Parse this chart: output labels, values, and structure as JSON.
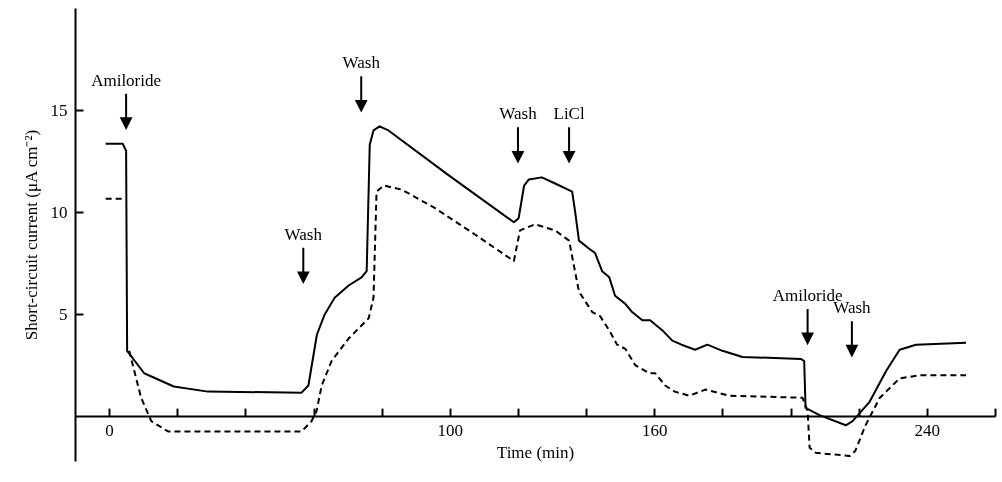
{
  "chart_data": {
    "type": "line",
    "xlabel": "Time (min)",
    "ylabel": "Short-circuit current (μA cm⁻²)",
    "xlim": [
      -10,
      260
    ],
    "ylim": [
      -2.2,
      20
    ],
    "xticks": [
      0,
      {
        "value": 20,
        "label": null
      },
      {
        "value": 40,
        "label": null
      },
      {
        "value": 60,
        "label": null
      },
      {
        "value": 80,
        "label": null
      },
      100,
      {
        "value": 120,
        "label": null
      },
      {
        "value": 140,
        "label": null
      },
      160,
      {
        "value": 180,
        "label": null
      },
      {
        "value": 200,
        "label": null
      },
      {
        "value": 220,
        "label": null
      },
      240,
      {
        "value": 260,
        "label": null
      }
    ],
    "yticks": [
      5,
      10,
      15
    ],
    "grid": false,
    "series": [
      {
        "color": "#000000",
        "line_style": "solid",
        "x": [
          -1,
          4,
          5,
          5.3,
          10.3,
          19,
          29,
          56.5,
          58.5,
          61,
          63.2,
          66.2,
          70.3,
          74.1,
          75.6,
          76.5,
          77.6,
          79.4,
          82,
          99.7,
          118.8,
          120.2,
          121.8,
          123.2,
          127,
          130.9,
          135.9,
          136.8,
          137.9,
          140.9,
          142.6,
          144.7,
          146.8,
          148.5,
          151.5,
          153.5,
          156.5,
          158.8,
          162.4,
          165.3,
          168,
          172,
          175.6,
          180,
          185.9,
          203,
          204,
          204.4,
          208.5,
          216.2,
          218.2,
          223.2,
          228,
          232,
          236.8,
          251.5
        ],
        "values": [
          13.35,
          13.35,
          13.0,
          3.2,
          2.1,
          1.45,
          1.2,
          1.15,
          1.5,
          4.0,
          4.95,
          5.8,
          6.4,
          6.8,
          7.1,
          13.3,
          14.0,
          14.2,
          14.0,
          11.8,
          9.5,
          9.7,
          11.3,
          11.6,
          11.7,
          11.4,
          11.0,
          10.0,
          8.6,
          8.2,
          8.0,
          7.1,
          6.8,
          5.9,
          5.5,
          5.1,
          4.7,
          4.7,
          4.2,
          3.7,
          3.5,
          3.25,
          3.5,
          3.2,
          2.9,
          2.8,
          2.7,
          0.4,
          0.05,
          -0.45,
          -0.25,
          0.7,
          2.2,
          3.25,
          3.5,
          3.6
        ]
      },
      {
        "color": "#000000",
        "line_style": "dashed",
        "x": [
          -1,
          4,
          5,
          5.9,
          9.4,
          12.4,
          17.3,
          56.5,
          59.4,
          60.9,
          62.4,
          65.3,
          70.3,
          76.2,
          77.6,
          78.5,
          80.6,
          85.9,
          95.6,
          107.4,
          118.8,
          120.6,
          125,
          130.9,
          135,
          137.9,
          141.8,
          144.1,
          146.8,
          149.1,
          151.5,
          154.4,
          158.5,
          160.3,
          163.2,
          166,
          170.3,
          175,
          182,
          203.5,
          205,
          205.6,
          207.4,
          217.4,
          219,
          222,
          226.2,
          232,
          237.9,
          251.5
        ],
        "values": [
          10.65,
          10.65,
          null,
          3.2,
          0.9,
          -0.25,
          -0.75,
          -0.75,
          -0.25,
          0.25,
          1.5,
          2.7,
          3.8,
          4.8,
          5.8,
          11.0,
          11.3,
          11.1,
          10.2,
          8.9,
          7.6,
          9.1,
          9.4,
          9.1,
          8.6,
          6.1,
          5.1,
          4.9,
          4.2,
          3.5,
          3.3,
          2.5,
          2.1,
          2.1,
          1.5,
          1.2,
          1.0,
          1.3,
          1.0,
          0.9,
          0.25,
          -1.55,
          -1.8,
          -1.95,
          -1.7,
          -0.45,
          0.9,
          1.85,
          2.0,
          2.0
        ]
      }
    ],
    "annotations": [
      {
        "text": "Amiloride",
        "x": 5
      },
      {
        "text": "Wash",
        "x": 57
      },
      {
        "text": "Wash",
        "x": 74
      },
      {
        "text": "Wash",
        "x": 120
      },
      {
        "text": "LiCl",
        "x": 135
      },
      {
        "text": "Amiloride",
        "x": 205
      },
      {
        "text": "Wash",
        "x": 218
      }
    ]
  }
}
